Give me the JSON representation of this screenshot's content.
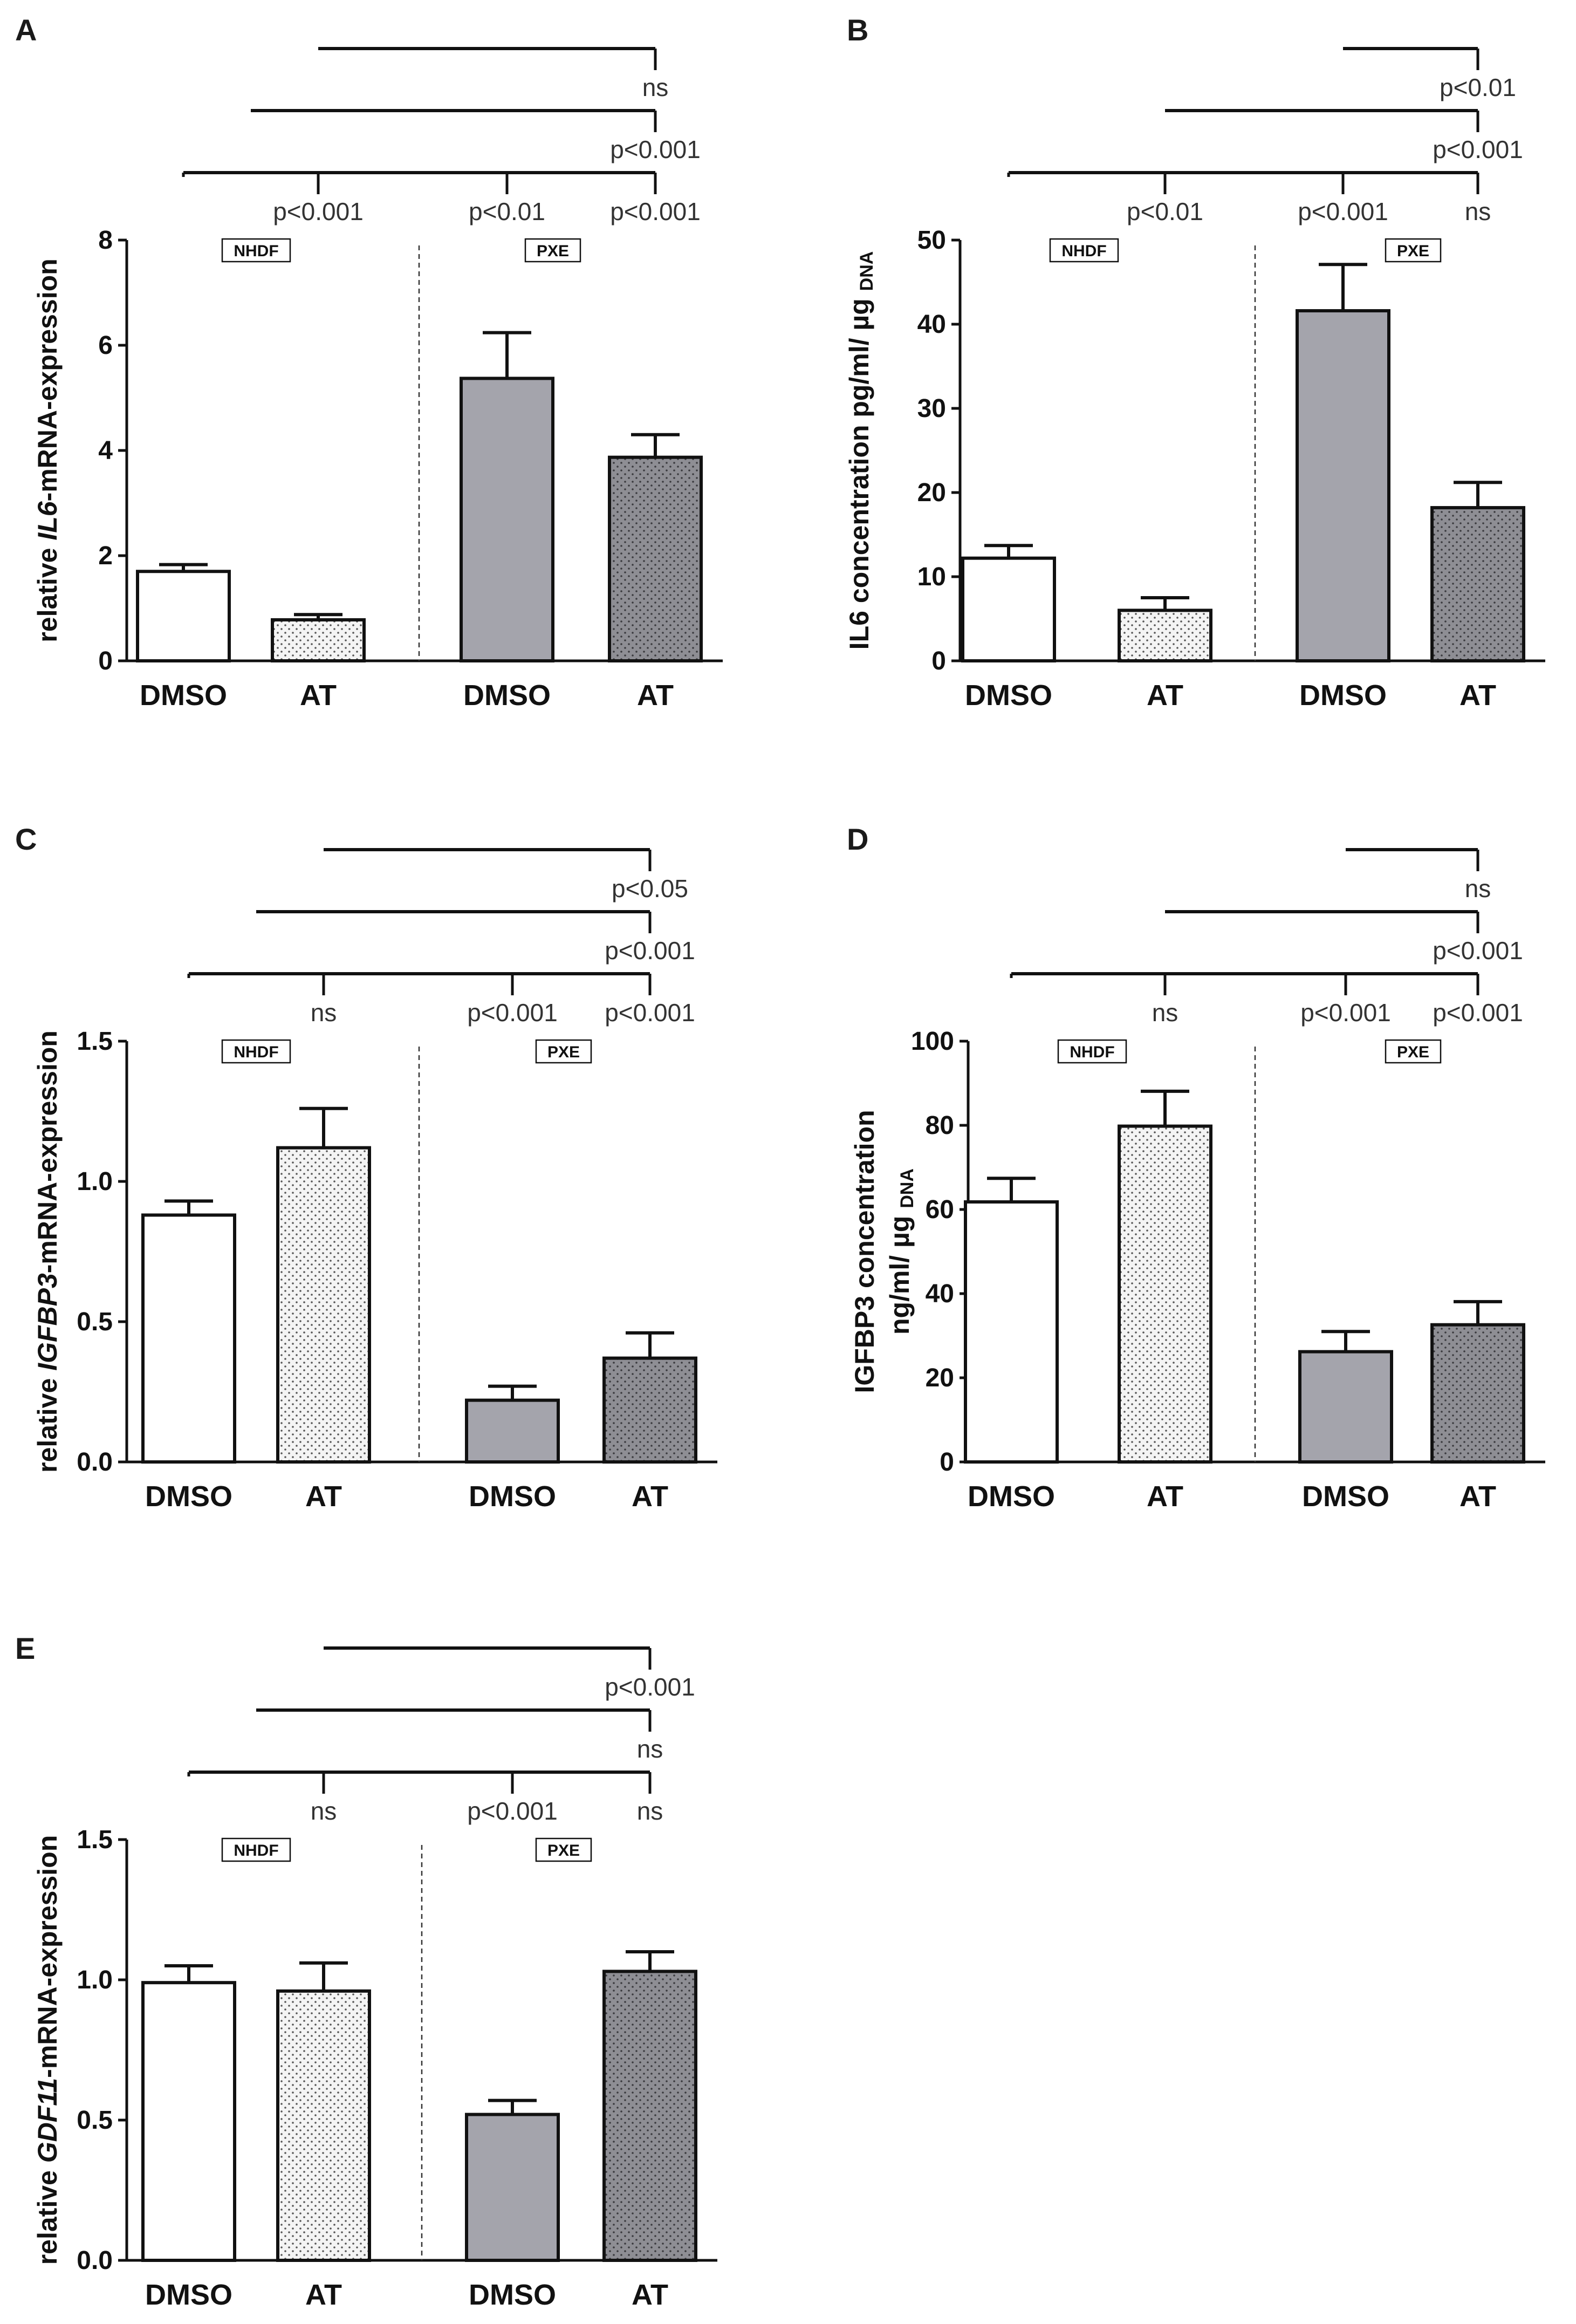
{
  "colors": {
    "axis": "#111111",
    "bar_outline": "#111111",
    "nhdf_dmso": "#ffffff",
    "nhdf_at": "#f4f4f4",
    "pxe_dmso": "#a4a4ac",
    "pxe_at": "#8e8e94",
    "dot": "#555555",
    "sig_text": "#333333"
  },
  "chart_data": [
    {
      "panel": "A",
      "type": "bar",
      "categories": [
        "DMSO",
        "AT",
        "DMSO",
        "AT"
      ],
      "groups": [
        "NHDF",
        "PXE"
      ],
      "values": [
        1.7,
        0.78,
        5.37,
        3.87
      ],
      "errors": [
        0.13,
        0.1,
        0.87,
        0.43
      ],
      "ylabel_parts": [
        "relative ",
        "IL6",
        "-mRNA-expression"
      ],
      "ylabel_italic_index": 1,
      "ylim": [
        0,
        8
      ],
      "yticks": [
        "0",
        "2",
        "4",
        "6",
        "8"
      ],
      "significance": [
        {
          "from": 1,
          "to": 3,
          "label": "ns"
        },
        {
          "from": 0.5,
          "to": 3,
          "label": "p<0.001"
        },
        {
          "from": 0,
          "to": 3,
          "label": "p<0.001",
          "sub_labels": [
            {
              "bar": 1,
              "label": "p<0.001"
            },
            {
              "bar": 2,
              "label": "p<0.01"
            }
          ]
        }
      ]
    },
    {
      "panel": "B",
      "type": "bar",
      "categories": [
        "DMSO",
        "AT",
        "DMSO",
        "AT"
      ],
      "groups": [
        "NHDF",
        "PXE"
      ],
      "values": [
        12.2,
        6.0,
        41.6,
        18.2
      ],
      "errors": [
        1.5,
        1.5,
        5.5,
        3.0
      ],
      "ylabel_parts": [
        "IL6 concentration pg/ml/ µg ",
        "DNA"
      ],
      "ylabel_sub_index": 1,
      "ylim": [
        0,
        50
      ],
      "yticks": [
        "0",
        "10",
        "20",
        "30",
        "40",
        "50"
      ],
      "significance": [
        {
          "from": 2,
          "to": 3,
          "label": "p<0.01"
        },
        {
          "from": 1,
          "to": 3,
          "label": "p<0.001"
        },
        {
          "from": 0,
          "to": 3,
          "label": "ns",
          "sub_labels": [
            {
              "bar": 1,
              "label": "p<0.01"
            },
            {
              "bar": 2,
              "label": "p<0.001"
            }
          ]
        }
      ]
    },
    {
      "panel": "C",
      "type": "bar",
      "categories": [
        "DMSO",
        "AT",
        "DMSO",
        "AT"
      ],
      "groups": [
        "NHDF",
        "PXE"
      ],
      "values": [
        0.88,
        1.12,
        0.22,
        0.37
      ],
      "errors": [
        0.05,
        0.14,
        0.05,
        0.09
      ],
      "ylabel_parts": [
        "relative ",
        "IGFBP3",
        "-mRNA-expression"
      ],
      "ylabel_italic_index": 1,
      "ylim": [
        0,
        1.5
      ],
      "yticks": [
        "0.0",
        "0.5",
        "1.0",
        "1.5"
      ],
      "significance": [
        {
          "from": 1,
          "to": 3,
          "label": "p<0.05"
        },
        {
          "from": 0.5,
          "to": 3,
          "label": "p<0.001"
        },
        {
          "from": 0,
          "to": 3,
          "label": "p<0.001",
          "sub_labels": [
            {
              "bar": 1,
              "label": "ns"
            },
            {
              "bar": 2,
              "label": "p<0.001"
            }
          ]
        }
      ]
    },
    {
      "panel": "D",
      "type": "bar",
      "categories": [
        "DMSO",
        "AT",
        "DMSO",
        "AT"
      ],
      "groups": [
        "NHDF",
        "PXE"
      ],
      "values": [
        61.8,
        79.8,
        26.2,
        32.6
      ],
      "errors": [
        5.6,
        8.3,
        4.8,
        5.5
      ],
      "ylabel_lines": [
        "IGFBP3 concentration"
      ],
      "ylabel_parts": [
        "ng/ml/ µg ",
        "DNA"
      ],
      "ylabel_sub_index": 1,
      "ylim": [
        0,
        100
      ],
      "yticks": [
        "0",
        "20",
        "40",
        "60",
        "80",
        "100"
      ],
      "significance": [
        {
          "from": 2,
          "to": 3,
          "label": "ns"
        },
        {
          "from": 1,
          "to": 3,
          "label": "p<0.001"
        },
        {
          "from": 0,
          "to": 3,
          "label": "p<0.001",
          "sub_labels": [
            {
              "bar": 1,
              "label": "ns"
            },
            {
              "bar": 2,
              "label": "p<0.001"
            }
          ]
        }
      ]
    },
    {
      "panel": "E",
      "type": "bar",
      "categories": [
        "DMSO",
        "AT",
        "DMSO",
        "AT"
      ],
      "groups": [
        "NHDF",
        "PXE"
      ],
      "values": [
        0.99,
        0.96,
        0.52,
        1.03
      ],
      "errors": [
        0.06,
        0.1,
        0.05,
        0.07
      ],
      "ylabel_parts": [
        "relative ",
        "GDF11",
        "-mRNA-expression"
      ],
      "ylabel_italic_index": 1,
      "ylim": [
        0,
        1.5
      ],
      "yticks": [
        "0.0",
        "0.5",
        "1.0",
        "1.5"
      ],
      "significance": [
        {
          "from": 1,
          "to": 3,
          "label": "p<0.001"
        },
        {
          "from": 0.5,
          "to": 3,
          "label": "ns"
        },
        {
          "from": 0,
          "to": 3,
          "label": "ns",
          "sub_labels": [
            {
              "bar": 1,
              "label": "ns"
            },
            {
              "bar": 2,
              "label": "p<0.001"
            }
          ]
        }
      ]
    }
  ]
}
